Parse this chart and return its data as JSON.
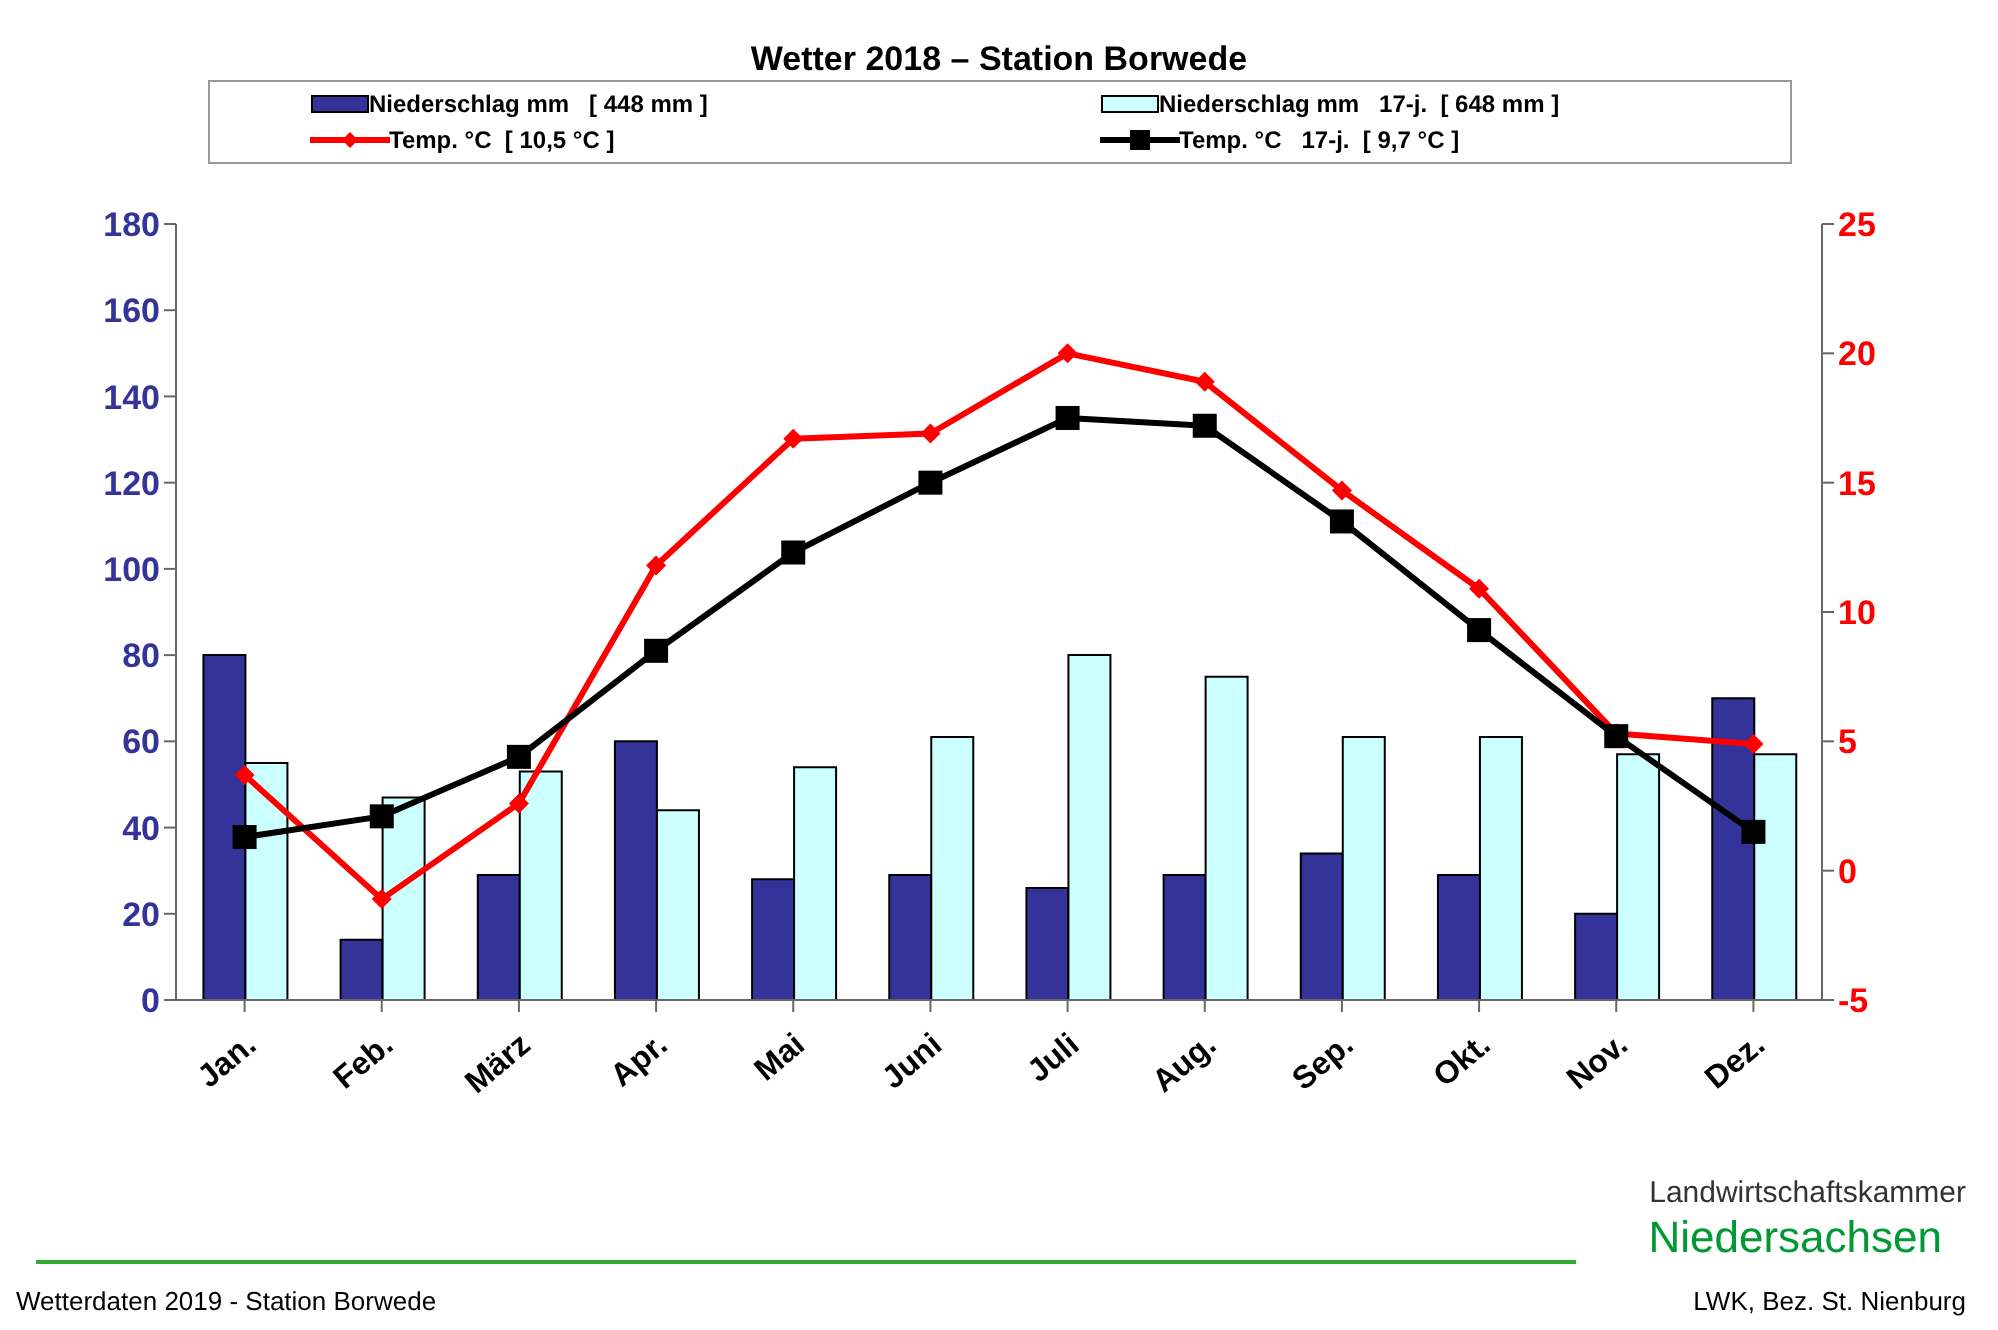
{
  "chart_data": {
    "type": "bar",
    "title": "Wetter 2018 – Station Borwede",
    "categories": [
      "Jan.",
      "Feb.",
      "März",
      "Apr.",
      "Mai",
      "Juni",
      "Juli",
      "Aug.",
      "Sep.",
      "Okt.",
      "Nov.",
      "Dez."
    ],
    "series": [
      {
        "name": "Niederschlag mm   [ 448 mm ]",
        "color": "#333399",
        "values": [
          80,
          14,
          29,
          60,
          28,
          29,
          26,
          29,
          34,
          29,
          20,
          70
        ]
      },
      {
        "name": "Niederschlag mm   17-j.  [ 648 mm ]",
        "color": "#ccffff",
        "values": [
          55,
          47,
          53,
          44,
          54,
          61,
          80,
          75,
          61,
          61,
          57,
          57
        ]
      },
      {
        "name": "Temp. °C  [ 10,5 °C ]",
        "type": "line",
        "axis": "y2",
        "color": "#ff0000",
        "marker": "diamond",
        "values": [
          3.7,
          -1.1,
          2.6,
          11.8,
          16.7,
          16.9,
          20.0,
          18.9,
          14.7,
          10.9,
          5.3,
          4.9
        ]
      },
      {
        "name": "Temp. °C   17-j.  [ 9,7 °C ]",
        "type": "line",
        "axis": "y2",
        "color": "#000000",
        "marker": "square",
        "values": [
          1.3,
          2.1,
          4.4,
          8.5,
          12.3,
          15.0,
          17.5,
          17.2,
          13.5,
          9.3,
          5.2,
          1.5
        ]
      }
    ],
    "ylim": [
      0,
      180
    ],
    "yticks": [
      0,
      20,
      40,
      60,
      80,
      100,
      120,
      140,
      160,
      180
    ],
    "y2lim": [
      -5,
      25
    ],
    "y2ticks": [
      -5,
      0,
      5,
      10,
      15,
      20,
      25
    ],
    "legend": "top",
    "annotations": [
      "Wetterdaten 2019 - Station Borwede",
      "LWK, Bez. St. Nienburg",
      "Landwirtschaftskammer",
      "Niedersachsen"
    ]
  }
}
